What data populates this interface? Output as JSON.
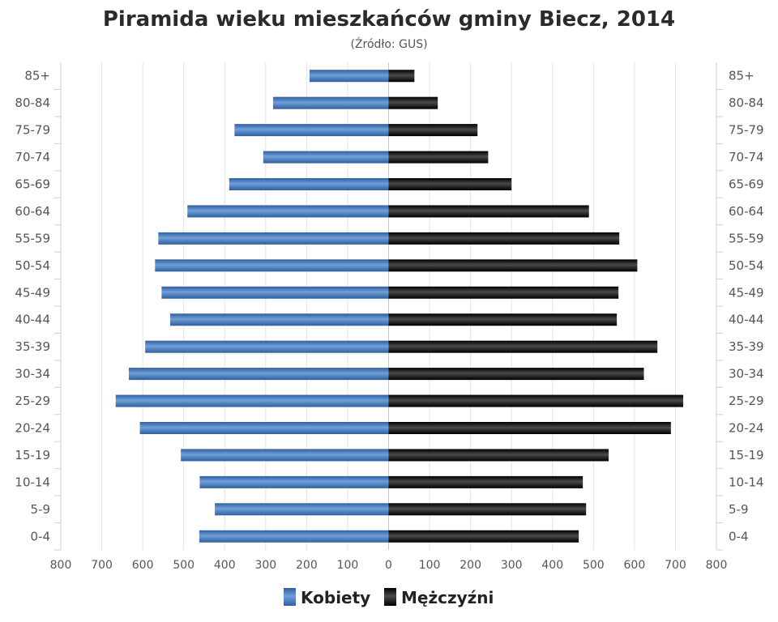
{
  "chart_data": {
    "type": "bar",
    "title": "Piramida wieku mieszkańców gminy Biecz, 2014",
    "subtitle": "(Źródło: GUS)",
    "categories": [
      "85+",
      "80-84",
      "75-79",
      "70-74",
      "65-69",
      "60-64",
      "55-59",
      "50-54",
      "45-49",
      "40-44",
      "35-39",
      "30-34",
      "25-29",
      "20-24",
      "15-19",
      "10-14",
      "5-9",
      "0-4"
    ],
    "xlim": [
      -800,
      800
    ],
    "x_ticks": [
      "800",
      "700",
      "600",
      "500",
      "400",
      "300",
      "200",
      "100",
      "0",
      "100",
      "200",
      "300",
      "400",
      "500",
      "600",
      "700",
      "800"
    ],
    "grid": true,
    "legend_position": "bottom",
    "series": [
      {
        "name": "Kobiety",
        "color": "#4a7fc0",
        "values": [
          193,
          282,
          376,
          306,
          389,
          491,
          562,
          570,
          554,
          533,
          594,
          634,
          666,
          607,
          507,
          461,
          424,
          462
        ]
      },
      {
        "name": "Mężczyźni",
        "color": "#1a1a1a",
        "values": [
          63,
          120,
          217,
          243,
          300,
          489,
          563,
          607,
          561,
          557,
          656,
          623,
          719,
          689,
          537,
          474,
          482,
          464
        ]
      }
    ]
  }
}
